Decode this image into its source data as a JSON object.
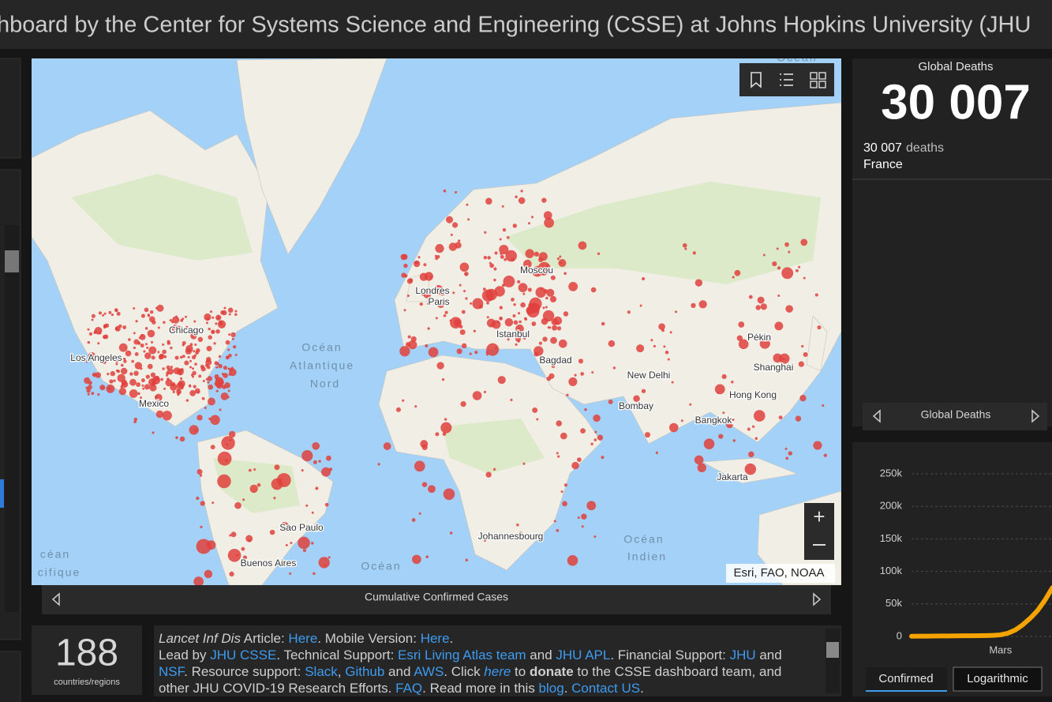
{
  "header": {
    "title": "hboard by the Center for Systems Science and Engineering (CSSE) at Johns Hopkins University (JHU"
  },
  "map": {
    "labels": [
      "Moscou",
      "Londres",
      "Paris",
      "Istanbul",
      "Bagdad",
      "Chicago",
      "Los Angeles",
      "Mexico",
      "New Delhi",
      "Bombay",
      "Bangkok",
      "Pékin",
      "Shanghai",
      "Hong Kong",
      "Jakarta",
      "Sao Paulo",
      "Buenos Aires",
      "Johannesbourg",
      "Océan",
      "Atlantique",
      "Nord",
      "Océan",
      "Indien",
      "Océan",
      "Océan",
      "céan",
      "cifique"
    ],
    "attribution": "Esri, FAO, NOAA",
    "caption": "Cumulative Confirmed Cases"
  },
  "deaths_panel": {
    "title": "Global Deaths",
    "total": "30 007",
    "detail_value": "30 007",
    "detail_unit": "deaths",
    "detail_place": "France",
    "nav": "Global Deaths"
  },
  "count_panel": {
    "value": "188",
    "label": "countries/regions"
  },
  "info": {
    "paragraphs": [
      [
        {
          "text": "Lancet Inf Dis",
          "style": "italic"
        },
        {
          "text": " Article: ",
          "style": "plain"
        },
        {
          "text": "Here",
          "style": "link"
        },
        {
          "text": ". Mobile Version: ",
          "style": "plain"
        },
        {
          "text": "Here",
          "style": "link"
        },
        {
          "text": ".",
          "style": "plain"
        }
      ],
      [
        {
          "text": "Lead by ",
          "style": "plain"
        },
        {
          "text": "JHU CSSE",
          "style": "link"
        },
        {
          "text": ". Technical Support: ",
          "style": "plain"
        },
        {
          "text": "Esri Living Atlas team",
          "style": "link"
        },
        {
          "text": " and ",
          "style": "plain"
        },
        {
          "text": "JHU APL",
          "style": "link"
        },
        {
          "text": ". Financial Support: ",
          "style": "plain"
        },
        {
          "text": "JHU",
          "style": "link"
        },
        {
          "text": " and ",
          "style": "plain"
        },
        {
          "text": "NSF",
          "style": "link"
        },
        {
          "text": ". Resource support: ",
          "style": "plain"
        },
        {
          "text": "Slack",
          "style": "link"
        },
        {
          "text": ", ",
          "style": "plain"
        },
        {
          "text": "Github",
          "style": "link"
        },
        {
          "text": " and ",
          "style": "plain"
        },
        {
          "text": "AWS",
          "style": "link"
        },
        {
          "text": ". Click ",
          "style": "plain"
        },
        {
          "text": "here",
          "style": "link-italic"
        },
        {
          "text": " to ",
          "style": "plain"
        },
        {
          "text": "donate",
          "style": "bold"
        },
        {
          "text": " to the CSSE dashboard team, and other JHU COVID-19 Research Efforts. ",
          "style": "plain"
        },
        {
          "text": "FAQ",
          "style": "link"
        },
        {
          "text": ". Read more in this ",
          "style": "plain"
        },
        {
          "text": "blog",
          "style": "link"
        },
        {
          "text": ". ",
          "style": "plain"
        },
        {
          "text": "Contact US",
          "style": "link"
        },
        {
          "text": ".",
          "style": "plain"
        }
      ]
    ]
  },
  "chart_data": {
    "type": "line",
    "categories": [
      null,
      null,
      null,
      null,
      null,
      null,
      null,
      null,
      null,
      null,
      null,
      null,
      "Mars",
      null,
      null,
      null,
      null,
      null,
      null,
      null
    ],
    "values": [
      300,
      400,
      500,
      600,
      700,
      800,
      900,
      1000,
      1100,
      1200,
      1400,
      1700,
      2500,
      5000,
      10000,
      18000,
      28000,
      40000,
      56000,
      75000
    ],
    "color": "#f5a300",
    "ylim": [
      0,
      250000
    ],
    "yticks": [
      0,
      {
        "value": 50000,
        "label": "50k"
      },
      {
        "value": 100000,
        "label": "100k"
      },
      {
        "value": 150000,
        "label": "150k"
      },
      {
        "value": 200000,
        "label": "200k"
      },
      {
        "value": 250000,
        "label": "250k"
      }
    ],
    "grid": true
  },
  "chart_tabs": [
    "Confirmed",
    "Logarithmic"
  ]
}
